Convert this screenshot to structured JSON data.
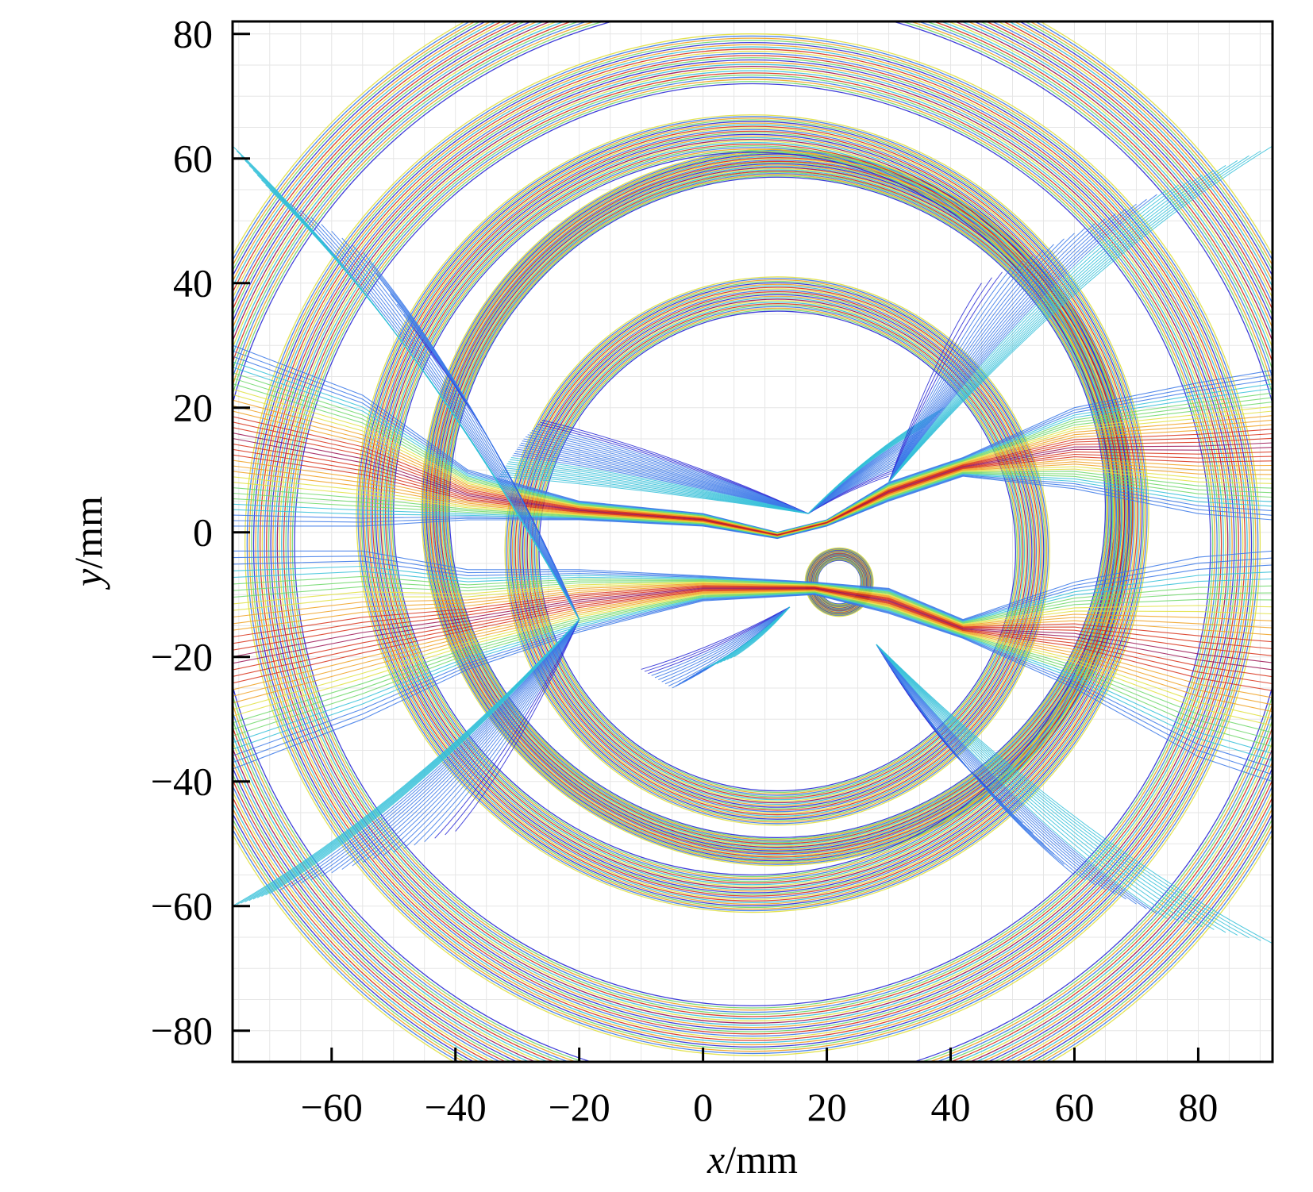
{
  "chart_data": {
    "type": "line",
    "title": "",
    "xlabel": {
      "var": "x",
      "unit": "/mm"
    },
    "ylabel": {
      "var": "y",
      "unit": "/mm"
    },
    "xlim": [
      -76,
      92
    ],
    "ylim": [
      -85,
      82
    ],
    "xticks": [
      -60,
      -40,
      -20,
      0,
      20,
      40,
      60,
      80
    ],
    "yticks": [
      -80,
      -60,
      -40,
      -20,
      0,
      20,
      40,
      60,
      80
    ],
    "xtick_labels": [
      "−60",
      "−40",
      "−20",
      "0",
      "20",
      "40",
      "60",
      "80"
    ],
    "ytick_labels": [
      "−80",
      "−60",
      "−40",
      "−20",
      "0",
      "20",
      "40",
      "60",
      "80"
    ],
    "grid": true,
    "legend": "none",
    "colormap": [
      "#2a2ad6",
      "#3a78e8",
      "#33c0d8",
      "#6fd86a",
      "#e0e040",
      "#f0a020",
      "#d83018",
      "#9a1050"
    ],
    "series": [
      {
        "kind": "circles",
        "center": [
          12,
          -3
        ],
        "radius": [
          38.5,
          44
        ]
      },
      {
        "kind": "circles",
        "center": [
          12,
          4
        ],
        "radius": [
          53,
          57.5
        ]
      },
      {
        "kind": "circles",
        "center": [
          8,
          3
        ],
        "radius": [
          58,
          64
        ]
      },
      {
        "kind": "circles",
        "center": [
          8,
          -2
        ],
        "radius": [
          74,
          82
        ]
      },
      {
        "kind": "circles",
        "center": [
          8,
          -2
        ],
        "radius": [
          87,
          96
        ]
      },
      {
        "kind": "circles",
        "center": [
          22,
          -8
        ],
        "radius": [
          3.5,
          5.5
        ]
      },
      {
        "kind": "band",
        "upper": [
          [
            -76,
            30
          ],
          [
            -55,
            22
          ],
          [
            -38,
            10
          ],
          [
            -20,
            5
          ],
          [
            0,
            3
          ],
          [
            12,
            0
          ],
          [
            20,
            2
          ],
          [
            30,
            8
          ],
          [
            42,
            12
          ],
          [
            60,
            20
          ],
          [
            80,
            24
          ],
          [
            92,
            26
          ]
        ],
        "lower": [
          [
            -76,
            1
          ],
          [
            -55,
            1
          ],
          [
            -38,
            2
          ],
          [
            -20,
            2
          ],
          [
            0,
            1
          ],
          [
            12,
            -1
          ],
          [
            20,
            1
          ],
          [
            30,
            5
          ],
          [
            42,
            9
          ],
          [
            60,
            7
          ],
          [
            80,
            3
          ],
          [
            92,
            2
          ]
        ]
      },
      {
        "kind": "band",
        "upper": [
          [
            -76,
            -3
          ],
          [
            -55,
            -3
          ],
          [
            -38,
            -6
          ],
          [
            -20,
            -6
          ],
          [
            0,
            -7
          ],
          [
            18,
            -8
          ],
          [
            30,
            -9
          ],
          [
            42,
            -14
          ],
          [
            60,
            -8
          ],
          [
            80,
            -4
          ],
          [
            92,
            -3
          ]
        ],
        "lower": [
          [
            -76,
            -38
          ],
          [
            -55,
            -30
          ],
          [
            -38,
            -22
          ],
          [
            -20,
            -16
          ],
          [
            0,
            -11
          ],
          [
            18,
            -10
          ],
          [
            30,
            -13
          ],
          [
            42,
            -17
          ],
          [
            60,
            -25
          ],
          [
            80,
            -36
          ],
          [
            92,
            -40
          ]
        ]
      },
      {
        "kind": "fan",
        "from": [
          17,
          3
        ],
        "to": [
          [
            -26,
            18
          ],
          [
            -29,
            15
          ],
          [
            -31,
            12
          ],
          [
            -33,
            9
          ]
        ]
      },
      {
        "kind": "fan",
        "from": [
          17,
          3
        ],
        "to": [
          [
            30,
            9
          ],
          [
            33,
            13
          ],
          [
            36,
            17
          ],
          [
            39,
            20
          ]
        ]
      },
      {
        "kind": "fan",
        "from": [
          -20,
          -14
        ],
        "to": [
          [
            -45,
            30
          ],
          [
            -55,
            45
          ],
          [
            -70,
            55
          ],
          [
            -76,
            62
          ]
        ]
      },
      {
        "kind": "fan",
        "from": [
          14,
          -12
        ],
        "to": [
          [
            -10,
            -22
          ],
          [
            -5,
            -25
          ],
          [
            0,
            -22
          ],
          [
            5,
            -20
          ]
        ]
      },
      {
        "kind": "fan",
        "from": [
          28,
          -18
        ],
        "to": [
          [
            45,
            -40
          ],
          [
            60,
            -55
          ],
          [
            75,
            -62
          ],
          [
            92,
            -66
          ]
        ]
      },
      {
        "kind": "fan",
        "from": [
          30,
          8
        ],
        "to": [
          [
            45,
            40
          ],
          [
            60,
            48
          ],
          [
            75,
            55
          ],
          [
            92,
            62
          ]
        ]
      },
      {
        "kind": "fan",
        "from": [
          -20,
          -14
        ],
        "to": [
          [
            -40,
            -48
          ],
          [
            -55,
            -53
          ],
          [
            -70,
            -58
          ],
          [
            -76,
            -60
          ]
        ]
      }
    ]
  }
}
